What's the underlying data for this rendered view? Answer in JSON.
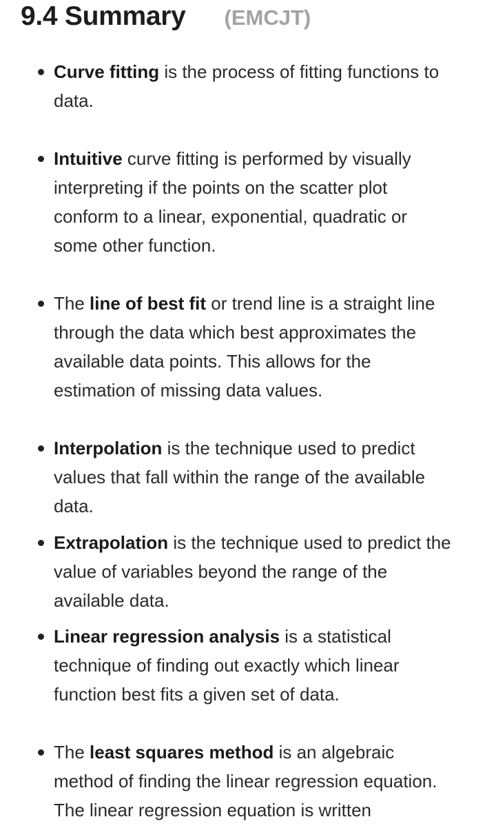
{
  "section": {
    "title": "9.4 Summary",
    "code": "(EMCJT)"
  },
  "items": [
    {
      "bold": "Curve fitting",
      "rest": " is the process of fitting functions to",
      "lines": [
        "data."
      ]
    },
    {
      "bold": "Intuitive",
      "rest": " curve fitting is performed by visually",
      "lines": [
        "interpreting if the points on the scatter plot",
        "conform to a linear, exponential, quadratic or",
        "some other function."
      ]
    },
    {
      "pre": "The ",
      "bold": "line of best fit",
      "rest": " or trend line is a straight line",
      "lines": [
        "through the data which best approximates the",
        "available data points. This allows for the",
        "estimation of missing data values."
      ]
    },
    {
      "bold": "Interpolation",
      "rest": " is the technique used to predict",
      "lines": [
        "values that fall within the range of the available",
        "data."
      ]
    },
    {
      "bold": "Extrapolation",
      "rest": " is the technique used to predict the",
      "lines": [
        "value of variables beyond the range of the",
        "available data."
      ]
    },
    {
      "bold": "Linear regression analysis",
      "rest": " is a statistical",
      "lines": [
        "technique of finding out exactly which linear",
        "function best fits a given set of data."
      ]
    },
    {
      "pre": "The ",
      "bold": "least squares method",
      "rest": " is an algebraic",
      "lines": [
        "method of finding the linear regression equation.",
        "The linear regression equation is written"
      ]
    }
  ]
}
